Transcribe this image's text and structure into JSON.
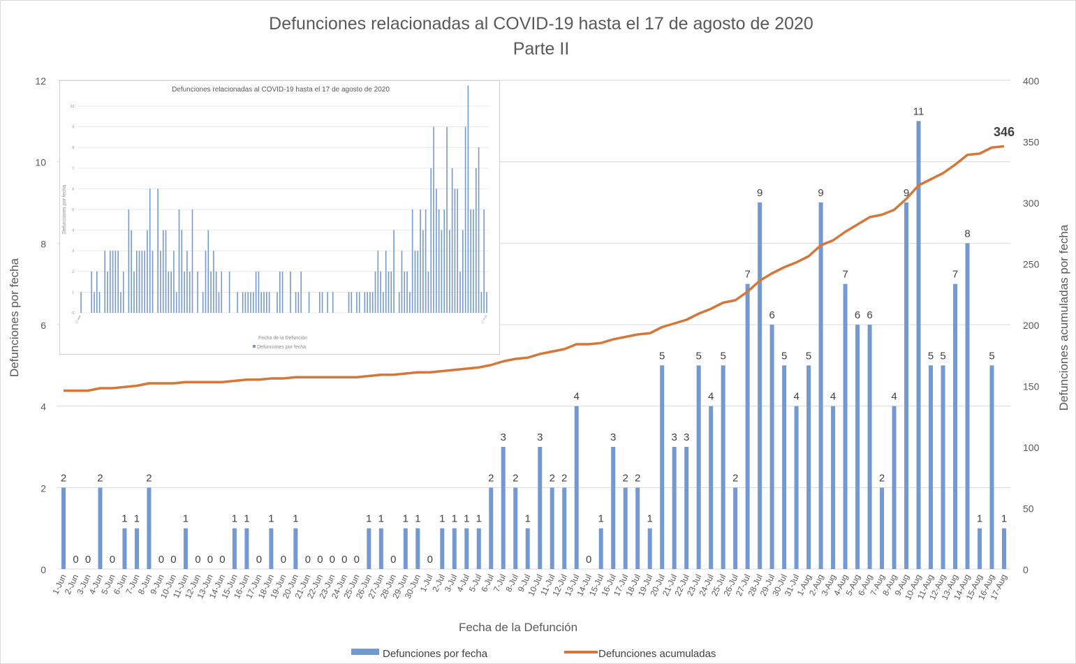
{
  "chart_data": {
    "type": "bar+line",
    "title": "Defunciones relacionadas al COVID-19 hasta el 17 de agosto de 2020",
    "subtitle": "Parte II",
    "xlabel": "Fecha de la Defunción",
    "ylabel": "Defunciones por fecha",
    "y2label": "Defunciones acumuladas por fecha",
    "ylim": [
      0,
      12
    ],
    "yticks": [
      "0",
      "2",
      "4",
      "6",
      "8",
      "10",
      "12"
    ],
    "y2lim": [
      0,
      400
    ],
    "y2ticks": [
      "0",
      "50",
      "100",
      "150",
      "200",
      "250",
      "300",
      "350",
      "400"
    ],
    "categories": [
      "1-Jun",
      "2-Jun",
      "3-Jun",
      "4-Jun",
      "5-Jun",
      "6-Jun",
      "7-Jun",
      "8-Jun",
      "9-Jun",
      "10-Jun",
      "11-Jun",
      "12-Jun",
      "13-Jun",
      "14-Jun",
      "15-Jun",
      "16-Jun",
      "17-Jun",
      "18-Jun",
      "19-Jun",
      "20-Jun",
      "21-Jun",
      "22-Jun",
      "23-Jun",
      "24-Jun",
      "25-Jun",
      "26-Jun",
      "27-Jun",
      "28-Jun",
      "29-Jun",
      "30-Jun",
      "1-Jul",
      "2-Jul",
      "3-Jul",
      "4-Jul",
      "5-Jul",
      "6-Jul",
      "7-Jul",
      "8-Jul",
      "9-Jul",
      "10-Jul",
      "11-Jul",
      "12-Jul",
      "13-Jul",
      "14-Jul",
      "15-Jul",
      "16-Jul",
      "17-Jul",
      "18-Jul",
      "19-Jul",
      "20-Jul",
      "21-Jul",
      "22-Jul",
      "23-Jul",
      "24-Jul",
      "25-Jul",
      "26-Jul",
      "27-Jul",
      "28-Jul",
      "29-Jul",
      "30-Jul",
      "31-Jul",
      "1-Aug",
      "2-Aug",
      "3-Aug",
      "4-Aug",
      "5-Aug",
      "6-Aug",
      "7-Aug",
      "8-Aug",
      "9-Aug",
      "10-Aug",
      "11-Aug",
      "12-Aug",
      "13-Aug",
      "14-Aug",
      "15-Aug",
      "16-Aug",
      "17-Aug"
    ],
    "series": [
      {
        "name": "Defunciones por fecha",
        "type": "bar",
        "color": "#7499d2",
        "values": [
          2,
          0,
          0,
          2,
          0,
          1,
          1,
          2,
          0,
          0,
          1,
          0,
          0,
          0,
          1,
          1,
          0,
          1,
          0,
          1,
          0,
          0,
          0,
          0,
          0,
          1,
          1,
          0,
          1,
          1,
          0,
          1,
          1,
          1,
          1,
          2,
          3,
          2,
          1,
          3,
          2,
          2,
          4,
          0,
          1,
          3,
          2,
          2,
          1,
          5,
          3,
          3,
          5,
          4,
          5,
          2,
          7,
          9,
          6,
          5,
          4,
          5,
          9,
          4,
          7,
          6,
          6,
          2,
          4,
          9,
          11,
          5,
          5,
          7,
          8,
          1,
          5,
          1
        ]
      },
      {
        "name": "Defunciones acumuladas",
        "type": "line",
        "axis": "right",
        "color": "#d4773a",
        "end_value": 346
      }
    ],
    "end_label": "346",
    "legend": "bottom",
    "inset": {
      "title": "Defunciones relacionadas al COVID-19 hasta el 17 de agosto de 2020",
      "xlabel": "Fecha de la Defunción",
      "ylabel": "Defunciones por fecha",
      "legend": "Defunciones por fecha",
      "ylim": [
        0,
        10
      ],
      "yticks": [
        "0",
        "1",
        "2",
        "3",
        "4",
        "5",
        "6",
        "7",
        "8",
        "9",
        "10"
      ],
      "first_date": "17-Mar",
      "last_date": "17-Aug",
      "early_values": [
        1,
        0,
        0,
        0,
        2,
        1,
        2,
        1,
        0,
        3,
        2,
        3,
        3,
        3,
        3,
        1,
        2,
        0,
        5,
        4,
        2,
        3,
        3,
        3,
        3,
        4,
        6,
        3,
        0,
        6,
        3,
        4,
        4,
        2,
        2,
        3,
        1,
        5,
        4,
        2,
        3,
        2,
        5,
        0,
        2,
        0,
        1,
        3,
        4,
        2,
        3,
        2,
        1,
        2,
        0,
        0,
        2,
        0,
        0,
        1,
        0,
        1,
        1,
        1,
        1,
        1,
        2,
        2,
        1,
        1,
        1,
        1,
        0,
        0,
        1,
        2
      ]
    }
  }
}
